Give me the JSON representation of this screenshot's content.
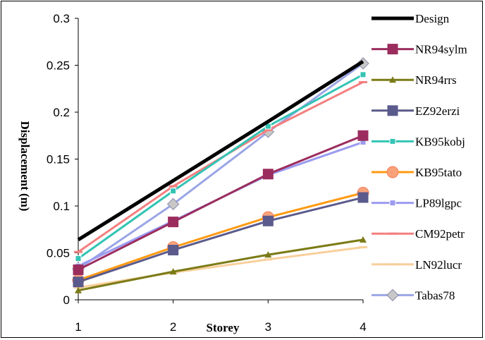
{
  "chart_data": {
    "type": "line",
    "title": "",
    "xlabel": "Storey",
    "ylabel": "Displacement (m)",
    "x": [
      1,
      2,
      3,
      4
    ],
    "xlim": [
      1,
      4
    ],
    "ylim": [
      0,
      0.3
    ],
    "y_ticks": [
      "0",
      "0.05",
      "0.1",
      "0.15",
      "0.2",
      "0.25",
      "0.3"
    ],
    "x_ticks": [
      "1",
      "2",
      "3",
      "4"
    ],
    "grid": false,
    "legend": "right",
    "series": [
      {
        "name": "Design",
        "values": [
          0.064,
          0.127,
          0.19,
          0.254
        ],
        "color": "#000000",
        "marker": "none"
      },
      {
        "name": "NR94sylm",
        "values": [
          0.032,
          0.083,
          0.134,
          0.175
        ],
        "color": "#9b2d5e",
        "marker": "square"
      },
      {
        "name": "NR94rrs",
        "values": [
          0.01,
          0.03,
          0.048,
          0.064
        ],
        "color": "#7b7b17",
        "marker": "triangle"
      },
      {
        "name": "EZ92erzi",
        "values": [
          0.019,
          0.053,
          0.084,
          0.109
        ],
        "color": "#5a5a8c",
        "marker": "square"
      },
      {
        "name": "KB95kobj",
        "values": [
          0.044,
          0.116,
          0.185,
          0.24
        ],
        "color": "#33c4b4",
        "marker": "square-small"
      },
      {
        "name": "KB95tato",
        "values": [
          0.021,
          0.056,
          0.088,
          0.114
        ],
        "color": "#ff9a12",
        "marker": "circle"
      },
      {
        "name": "LP89lgpc",
        "values": [
          0.036,
          0.084,
          0.133,
          0.168
        ],
        "color": "#9b9bf0",
        "marker": "square-small"
      },
      {
        "name": "CM92petr",
        "values": [
          0.051,
          0.121,
          0.181,
          0.232
        ],
        "color": "#f47f7f",
        "marker": "dash"
      },
      {
        "name": "LN92lucr",
        "values": [
          0.013,
          0.029,
          0.043,
          0.056
        ],
        "color": "#f8cf9a",
        "marker": "dash"
      },
      {
        "name": "Tabas78",
        "values": [
          0.033,
          0.102,
          0.179,
          0.252
        ],
        "color": "#9aa5e6",
        "marker": "diamond"
      }
    ]
  }
}
